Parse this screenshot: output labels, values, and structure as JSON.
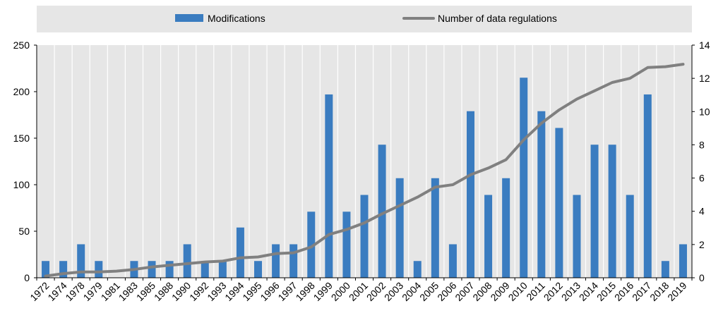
{
  "chart_data": {
    "type": "bar",
    "title": "",
    "xlabel": "",
    "ylabel": "",
    "categories": [
      "1972",
      "1974",
      "1978",
      "1979",
      "1981",
      "1983",
      "1985",
      "1988",
      "1990",
      "1992",
      "1993",
      "1994",
      "1995",
      "1996",
      "1997",
      "1998",
      "1999",
      "2000",
      "2001",
      "2002",
      "2003",
      "2004",
      "2005",
      "2006",
      "2007",
      "2008",
      "2009",
      "2010",
      "2011",
      "2012",
      "2013",
      "2014",
      "2015",
      "2016",
      "2017",
      "2018",
      "2019"
    ],
    "series": [
      {
        "name": "Modifications",
        "axis": "left",
        "type": "bar",
        "color": "#3a7cc0",
        "values": [
          18,
          18,
          36,
          18,
          0,
          18,
          18,
          18,
          36,
          18,
          18,
          54,
          18,
          36,
          36,
          71,
          197,
          71,
          89,
          143,
          107,
          18,
          107,
          36,
          179,
          89,
          107,
          215,
          179,
          161,
          89,
          143,
          143,
          89,
          197,
          18,
          36
        ]
      },
      {
        "name": "Number of data regulations",
        "axis": "right",
        "type": "line",
        "color": "#808080",
        "values": [
          0.1,
          0.25,
          0.35,
          0.35,
          0.4,
          0.5,
          0.65,
          0.75,
          0.85,
          0.95,
          1.0,
          1.2,
          1.25,
          1.45,
          1.5,
          1.85,
          2.6,
          2.9,
          3.3,
          3.85,
          4.35,
          4.85,
          5.45,
          5.6,
          6.2,
          6.6,
          7.1,
          8.3,
          9.3,
          10.1,
          10.75,
          11.25,
          11.75,
          12.0,
          12.65,
          12.7,
          12.85
        ]
      }
    ],
    "ylim": [
      0,
      250
    ],
    "yticks": [
      "0",
      "50",
      "100",
      "150",
      "200",
      "250"
    ],
    "y2lim": [
      0,
      14
    ],
    "y2ticks": [
      "0",
      "2",
      "4",
      "6",
      "8",
      "10",
      "12",
      "14"
    ],
    "legend": {
      "position": "top",
      "items": [
        "Modifications",
        "Number of data regulations"
      ]
    },
    "grid": true,
    "background": "#e6e6e6"
  }
}
